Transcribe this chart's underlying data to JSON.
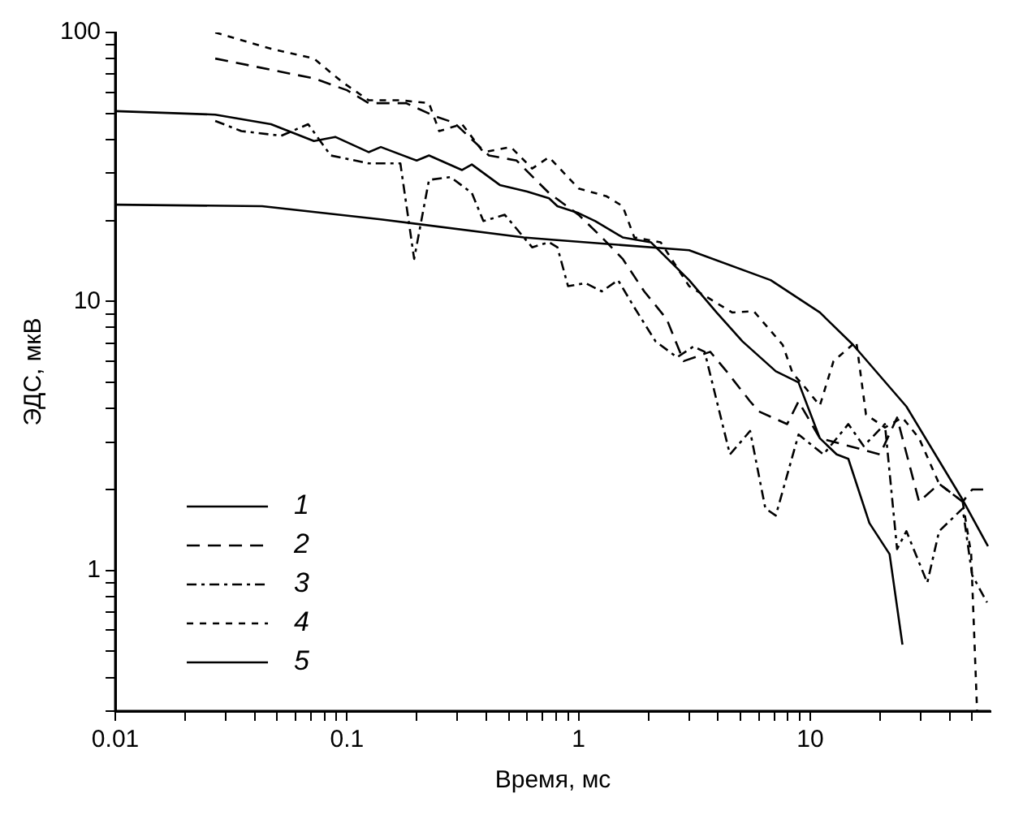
{
  "chart_data": {
    "type": "line",
    "xlabel": "Время, мс",
    "ylabel": "ЭДС, мкВ",
    "log": "xy",
    "grid": false,
    "legend": "bottom left",
    "marker": "none",
    "xlim": [
      0.01,
      60
    ],
    "ylim": [
      0.3,
      100
    ],
    "xticks": [
      0.01,
      {
        "value": 0.02,
        "label": null
      },
      {
        "value": 0.03,
        "label": null
      },
      {
        "value": 0.04,
        "label": null
      },
      {
        "value": 0.05,
        "label": null
      },
      {
        "value": 0.06,
        "label": null
      },
      {
        "value": 0.07,
        "label": null
      },
      {
        "value": 0.08,
        "label": null
      },
      {
        "value": 0.09,
        "label": null
      },
      0.1,
      {
        "value": 0.2,
        "label": null
      },
      {
        "value": 0.3,
        "label": null
      },
      {
        "value": 0.4,
        "label": null
      },
      {
        "value": 0.5,
        "label": null
      },
      {
        "value": 0.6,
        "label": null
      },
      {
        "value": 0.7,
        "label": null
      },
      {
        "value": 0.8,
        "label": null
      },
      {
        "value": 0.9,
        "label": null
      },
      1,
      {
        "value": 2,
        "label": null
      },
      {
        "value": 3,
        "label": null
      },
      {
        "value": 4,
        "label": null
      },
      {
        "value": 5,
        "label": null
      },
      {
        "value": 6,
        "label": null
      },
      {
        "value": 7,
        "label": null
      },
      {
        "value": 8,
        "label": null
      },
      {
        "value": 9,
        "label": null
      },
      10,
      {
        "value": 20,
        "label": null
      },
      {
        "value": 30,
        "label": null
      },
      {
        "value": 40,
        "label": null
      },
      {
        "value": 50,
        "label": null
      }
    ],
    "yticks": [
      {
        "value": 0.3,
        "label": null
      },
      {
        "value": 0.4,
        "label": null
      },
      {
        "value": 0.5,
        "label": null
      },
      {
        "value": 0.6,
        "label": null
      },
      {
        "value": 0.7,
        "label": null
      },
      {
        "value": 0.8,
        "label": null
      },
      {
        "value": 0.9,
        "label": null
      },
      1,
      {
        "value": 2,
        "label": null
      },
      {
        "value": 3,
        "label": null
      },
      {
        "value": 4,
        "label": null
      },
      {
        "value": 5,
        "label": null
      },
      {
        "value": 6,
        "label": null
      },
      {
        "value": 7,
        "label": null
      },
      {
        "value": 8,
        "label": null
      },
      {
        "value": 9,
        "label": null
      },
      10,
      {
        "value": 20,
        "label": null
      },
      {
        "value": 30,
        "label": null
      },
      {
        "value": 40,
        "label": null
      },
      {
        "value": 50,
        "label": null
      },
      {
        "value": 60,
        "label": null
      },
      {
        "value": 70,
        "label": null
      },
      {
        "value": 80,
        "label": null
      },
      {
        "value": 90,
        "label": null
      },
      100
    ],
    "series": [
      {
        "name": "1",
        "color": "#000000",
        "line_style": "solid",
        "x": [
          0.01,
          0.027,
          0.047,
          0.072,
          0.089,
          0.124,
          0.14,
          0.2,
          0.226,
          0.314,
          0.346,
          0.457,
          0.6,
          0.745,
          0.81,
          1,
          1.18,
          1.55,
          2.05,
          3,
          3.94,
          5.1,
          7.1,
          8.9,
          11,
          13,
          14.6,
          18,
          22,
          25
        ],
        "values": [
          51,
          49.5,
          45.6,
          39.5,
          40.9,
          35.9,
          37.5,
          33.4,
          34.9,
          30.8,
          32.3,
          27.1,
          25.6,
          24.2,
          22.6,
          21.3,
          19.9,
          17.3,
          16.6,
          12,
          9.1,
          7.1,
          5.5,
          5,
          3.1,
          2.7,
          2.6,
          1.5,
          1.15,
          0.53
        ]
      },
      {
        "name": "2",
        "color": "#000000",
        "line_style": "dashed",
        "x": [
          0.027,
          0.072,
          0.1,
          0.124,
          0.18,
          0.24,
          0.29,
          0.41,
          0.54,
          0.62,
          0.745,
          1,
          1.26,
          1.55,
          1.92,
          2.4,
          2.84,
          3.7,
          4.35,
          5.5,
          6,
          7.95,
          8.9,
          11,
          13.7,
          20,
          23.7,
          29.5,
          36,
          45.5,
          50,
          58
        ],
        "values": [
          80,
          67.5,
          61,
          54.6,
          54.6,
          48.8,
          46.2,
          34.9,
          33.4,
          29.6,
          25.3,
          21,
          17.3,
          14.4,
          10.9,
          8.6,
          6,
          6.5,
          5.5,
          4.25,
          3.9,
          3.5,
          4.25,
          3.1,
          2.95,
          2.7,
          3.7,
          1.8,
          2.1,
          1.8,
          2,
          2
        ]
      },
      {
        "name": "3",
        "color": "#000000",
        "line_style": "dashdot",
        "x": [
          0.027,
          0.035,
          0.052,
          0.068,
          0.085,
          0.124,
          0.17,
          0.195,
          0.226,
          0.28,
          0.346,
          0.388,
          0.48,
          0.63,
          0.745,
          0.81,
          0.9,
          1.07,
          1.26,
          1.48,
          1.74,
          2.15,
          2.66,
          3.13,
          3.5,
          4.5,
          5.5,
          6.4,
          7.1,
          8.9,
          11.4,
          14.6,
          17,
          21,
          23.7,
          26,
          32,
          36,
          45.5,
          50,
          58
        ],
        "values": [
          46.9,
          43,
          41.3,
          45.6,
          34.9,
          32.6,
          32.6,
          14.4,
          28.3,
          29,
          25.3,
          19.9,
          21,
          15.9,
          16.6,
          15.9,
          11.4,
          11.7,
          10.9,
          12,
          9.5,
          7.1,
          6.2,
          6.8,
          6.5,
          2.7,
          3.3,
          1.7,
          1.6,
          3.2,
          2.7,
          3.5,
          2.9,
          3.5,
          1.2,
          1.4,
          0.9,
          1.4,
          1.7,
          0.96,
          0.76
        ]
      },
      {
        "name": "4",
        "color": "#000000",
        "line_style": "dotted",
        "x": [
          0.027,
          0.047,
          0.072,
          0.095,
          0.124,
          0.17,
          0.226,
          0.25,
          0.314,
          0.388,
          0.51,
          0.63,
          0.745,
          1,
          1.32,
          1.55,
          1.74,
          2.26,
          3,
          4.6,
          5.7,
          7.6,
          8.4,
          9.3,
          11,
          12.6,
          15.8,
          17.4,
          21,
          25,
          29.5,
          36,
          45.5,
          49.5,
          52.5
        ],
        "values": [
          100,
          87,
          80,
          65.6,
          56,
          56,
          54.6,
          43,
          45.6,
          35.9,
          37.5,
          31.2,
          34.4,
          26.3,
          24.6,
          22.6,
          17.3,
          16.6,
          11.4,
          9.1,
          9.2,
          6.9,
          5.4,
          4.9,
          4.1,
          6,
          7.1,
          3.8,
          3.4,
          3.7,
          3.1,
          2.1,
          1.8,
          1.15,
          0.3
        ]
      },
      {
        "name": "5",
        "color": "#000000",
        "line_style": "solid",
        "x": [
          0.01,
          0.043,
          0.14,
          0.58,
          0.745,
          3,
          6.75,
          11,
          15.3,
          26,
          45.5,
          58.5
        ],
        "values": [
          22.9,
          22.6,
          20.2,
          17.3,
          17,
          15.5,
          12,
          9.1,
          6.9,
          4.07,
          1.83,
          1.23
        ]
      }
    ]
  }
}
